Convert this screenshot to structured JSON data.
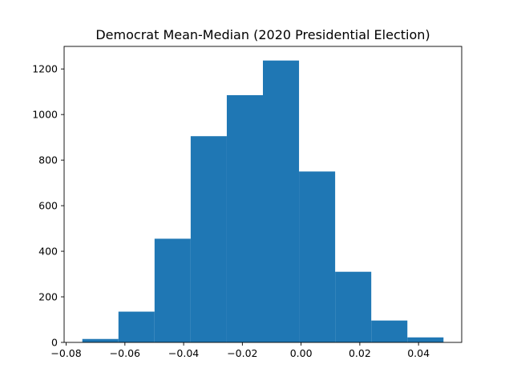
{
  "chart_data": {
    "type": "histogram",
    "title": "Democrat Mean-Median (2020 Presidential Election)",
    "xlabel": "",
    "ylabel": "",
    "bar_color": "#1f77b4",
    "bins": [
      {
        "x0": -0.0745,
        "x1": -0.0622,
        "count": 15
      },
      {
        "x0": -0.0622,
        "x1": -0.0499,
        "count": 135
      },
      {
        "x0": -0.0499,
        "x1": -0.0376,
        "count": 455
      },
      {
        "x0": -0.0376,
        "x1": -0.0253,
        "count": 905
      },
      {
        "x0": -0.0253,
        "x1": -0.013,
        "count": 1085
      },
      {
        "x0": -0.013,
        "x1": -0.0007,
        "count": 1237
      },
      {
        "x0": -0.0007,
        "x1": 0.0116,
        "count": 750
      },
      {
        "x0": 0.0116,
        "x1": 0.0239,
        "count": 310
      },
      {
        "x0": 0.0239,
        "x1": 0.0362,
        "count": 96
      },
      {
        "x0": 0.0362,
        "x1": 0.0485,
        "count": 22
      }
    ],
    "xlim": [
      -0.0807,
      0.0547
    ],
    "ylim": [
      0,
      1299
    ],
    "xticks": [
      -0.08,
      -0.06,
      -0.04,
      -0.02,
      0.0,
      0.02,
      0.04
    ],
    "xtick_labels": [
      "−0.08",
      "−0.06",
      "−0.04",
      "−0.02",
      "0.00",
      "0.02",
      "0.04"
    ],
    "yticks": [
      0,
      200,
      400,
      600,
      800,
      1000,
      1200
    ],
    "ytick_labels": [
      "0",
      "200",
      "400",
      "600",
      "800",
      "1000",
      "1200"
    ],
    "grid": false,
    "legend": "none"
  }
}
